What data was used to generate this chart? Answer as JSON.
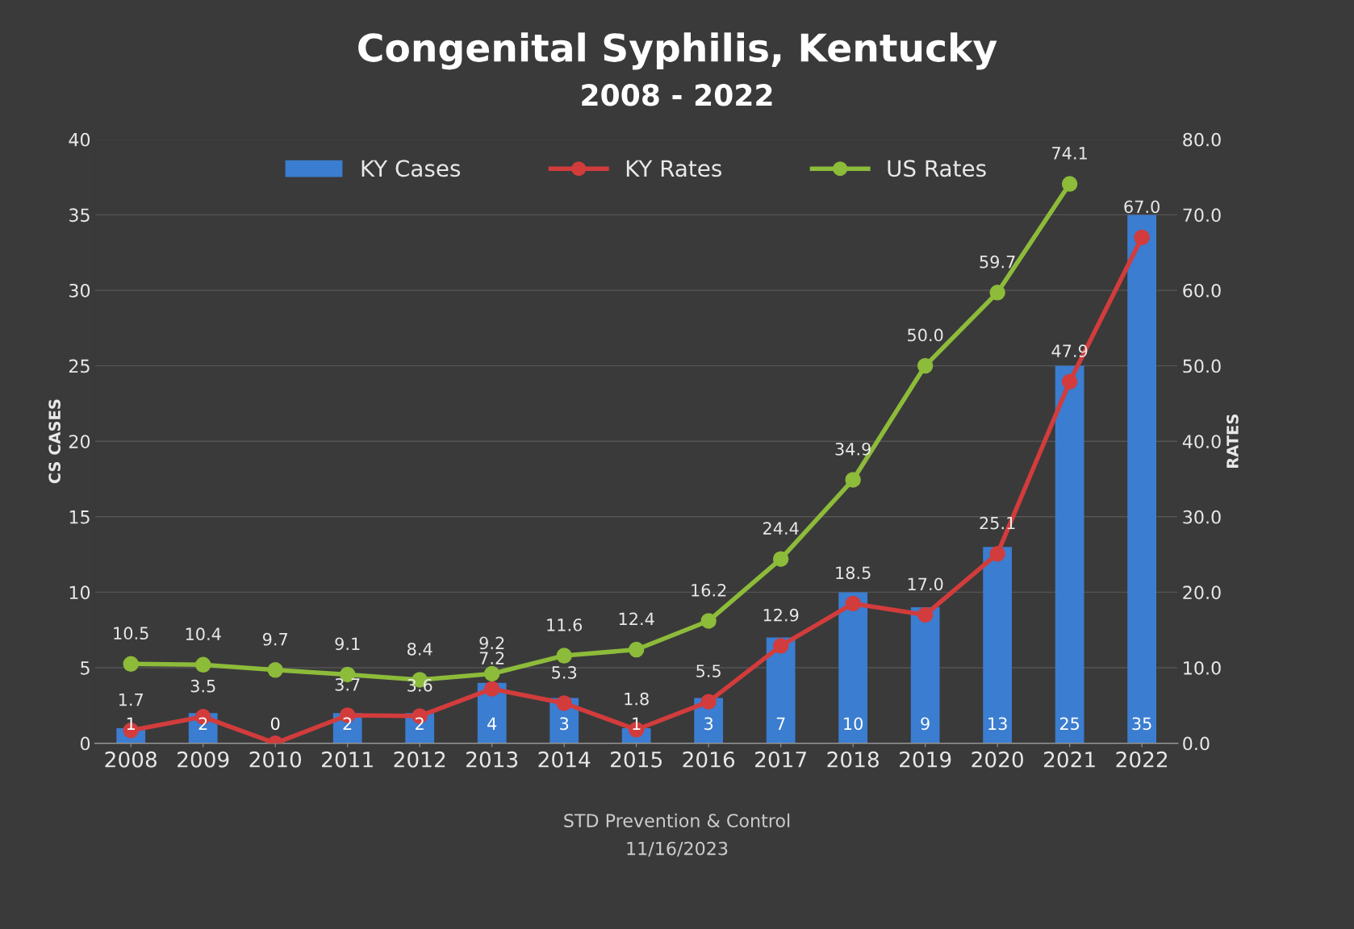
{
  "chart_data": {
    "type": "bar",
    "title": "Congenital Syphilis, Kentucky",
    "subtitle": "2008 - 2022",
    "ylabel": "CS CASES",
    "y2label": "RATES",
    "categories": [
      "2008",
      "2009",
      "2010",
      "2011",
      "2012",
      "2013",
      "2014",
      "2015",
      "2016",
      "2017",
      "2018",
      "2019",
      "2020",
      "2021",
      "2022"
    ],
    "series": [
      {
        "name": "KY Cases",
        "color": "#3b7dd0",
        "values": [
          1,
          2,
          0,
          2,
          2,
          4,
          3,
          1,
          3,
          7,
          10,
          9,
          13,
          25,
          35
        ],
        "value_labels": [
          "1",
          "2",
          "0",
          "2",
          "2",
          "4",
          "3",
          "1",
          "3",
          "7",
          "10",
          "9",
          "13",
          "25",
          "35"
        ]
      },
      {
        "name": "KY Rates",
        "type": "line",
        "axis": "y2",
        "color": "#d23c3c",
        "values": [
          1.7,
          3.5,
          0,
          3.7,
          3.6,
          7.2,
          5.3,
          1.8,
          5.5,
          12.9,
          18.5,
          17.0,
          25.1,
          47.9,
          67.0
        ],
        "value_labels": [
          "1.7",
          "3.5",
          null,
          "3.7",
          "3.6",
          "7.2",
          "5.3",
          "1.8",
          "5.5",
          "12.9",
          "18.5",
          "17.0",
          "25.1",
          "47.9",
          "67.0"
        ]
      },
      {
        "name": "US Rates",
        "type": "line",
        "axis": "y2",
        "color": "#8dbb3a",
        "values": [
          10.5,
          10.4,
          9.7,
          9.1,
          8.4,
          9.2,
          11.6,
          12.4,
          16.2,
          24.4,
          34.9,
          50.0,
          59.7,
          74.1,
          null
        ],
        "value_labels": [
          "10.5",
          "10.4",
          "9.7",
          "9.1",
          "8.4",
          "9.2",
          "11.6",
          "12.4",
          "16.2",
          "24.4",
          "34.9",
          "50.0",
          "59.7",
          "74.1",
          null
        ]
      }
    ],
    "ylim": [
      0,
      40
    ],
    "yticks": [
      0,
      5,
      10,
      15,
      20,
      25,
      30,
      35,
      40
    ],
    "y2lim": [
      0,
      80
    ],
    "y2ticks": [
      {
        "value": 0,
        "label": "0.0"
      },
      {
        "value": 10,
        "label": "10.0"
      },
      {
        "value": 20,
        "label": "20.0"
      },
      {
        "value": 30,
        "label": "30.0"
      },
      {
        "value": 40,
        "label": "40.0"
      },
      {
        "value": 50,
        "label": "50.0"
      },
      {
        "value": 60,
        "label": "60.0"
      },
      {
        "value": 70,
        "label": "70.0"
      },
      {
        "value": 80,
        "label": "80.0"
      }
    ],
    "grid": "y",
    "legend": "top",
    "marker": "circle",
    "line_style": "solid",
    "annotations": [
      "STD Prevention & Control",
      "11/16/2023"
    ]
  }
}
